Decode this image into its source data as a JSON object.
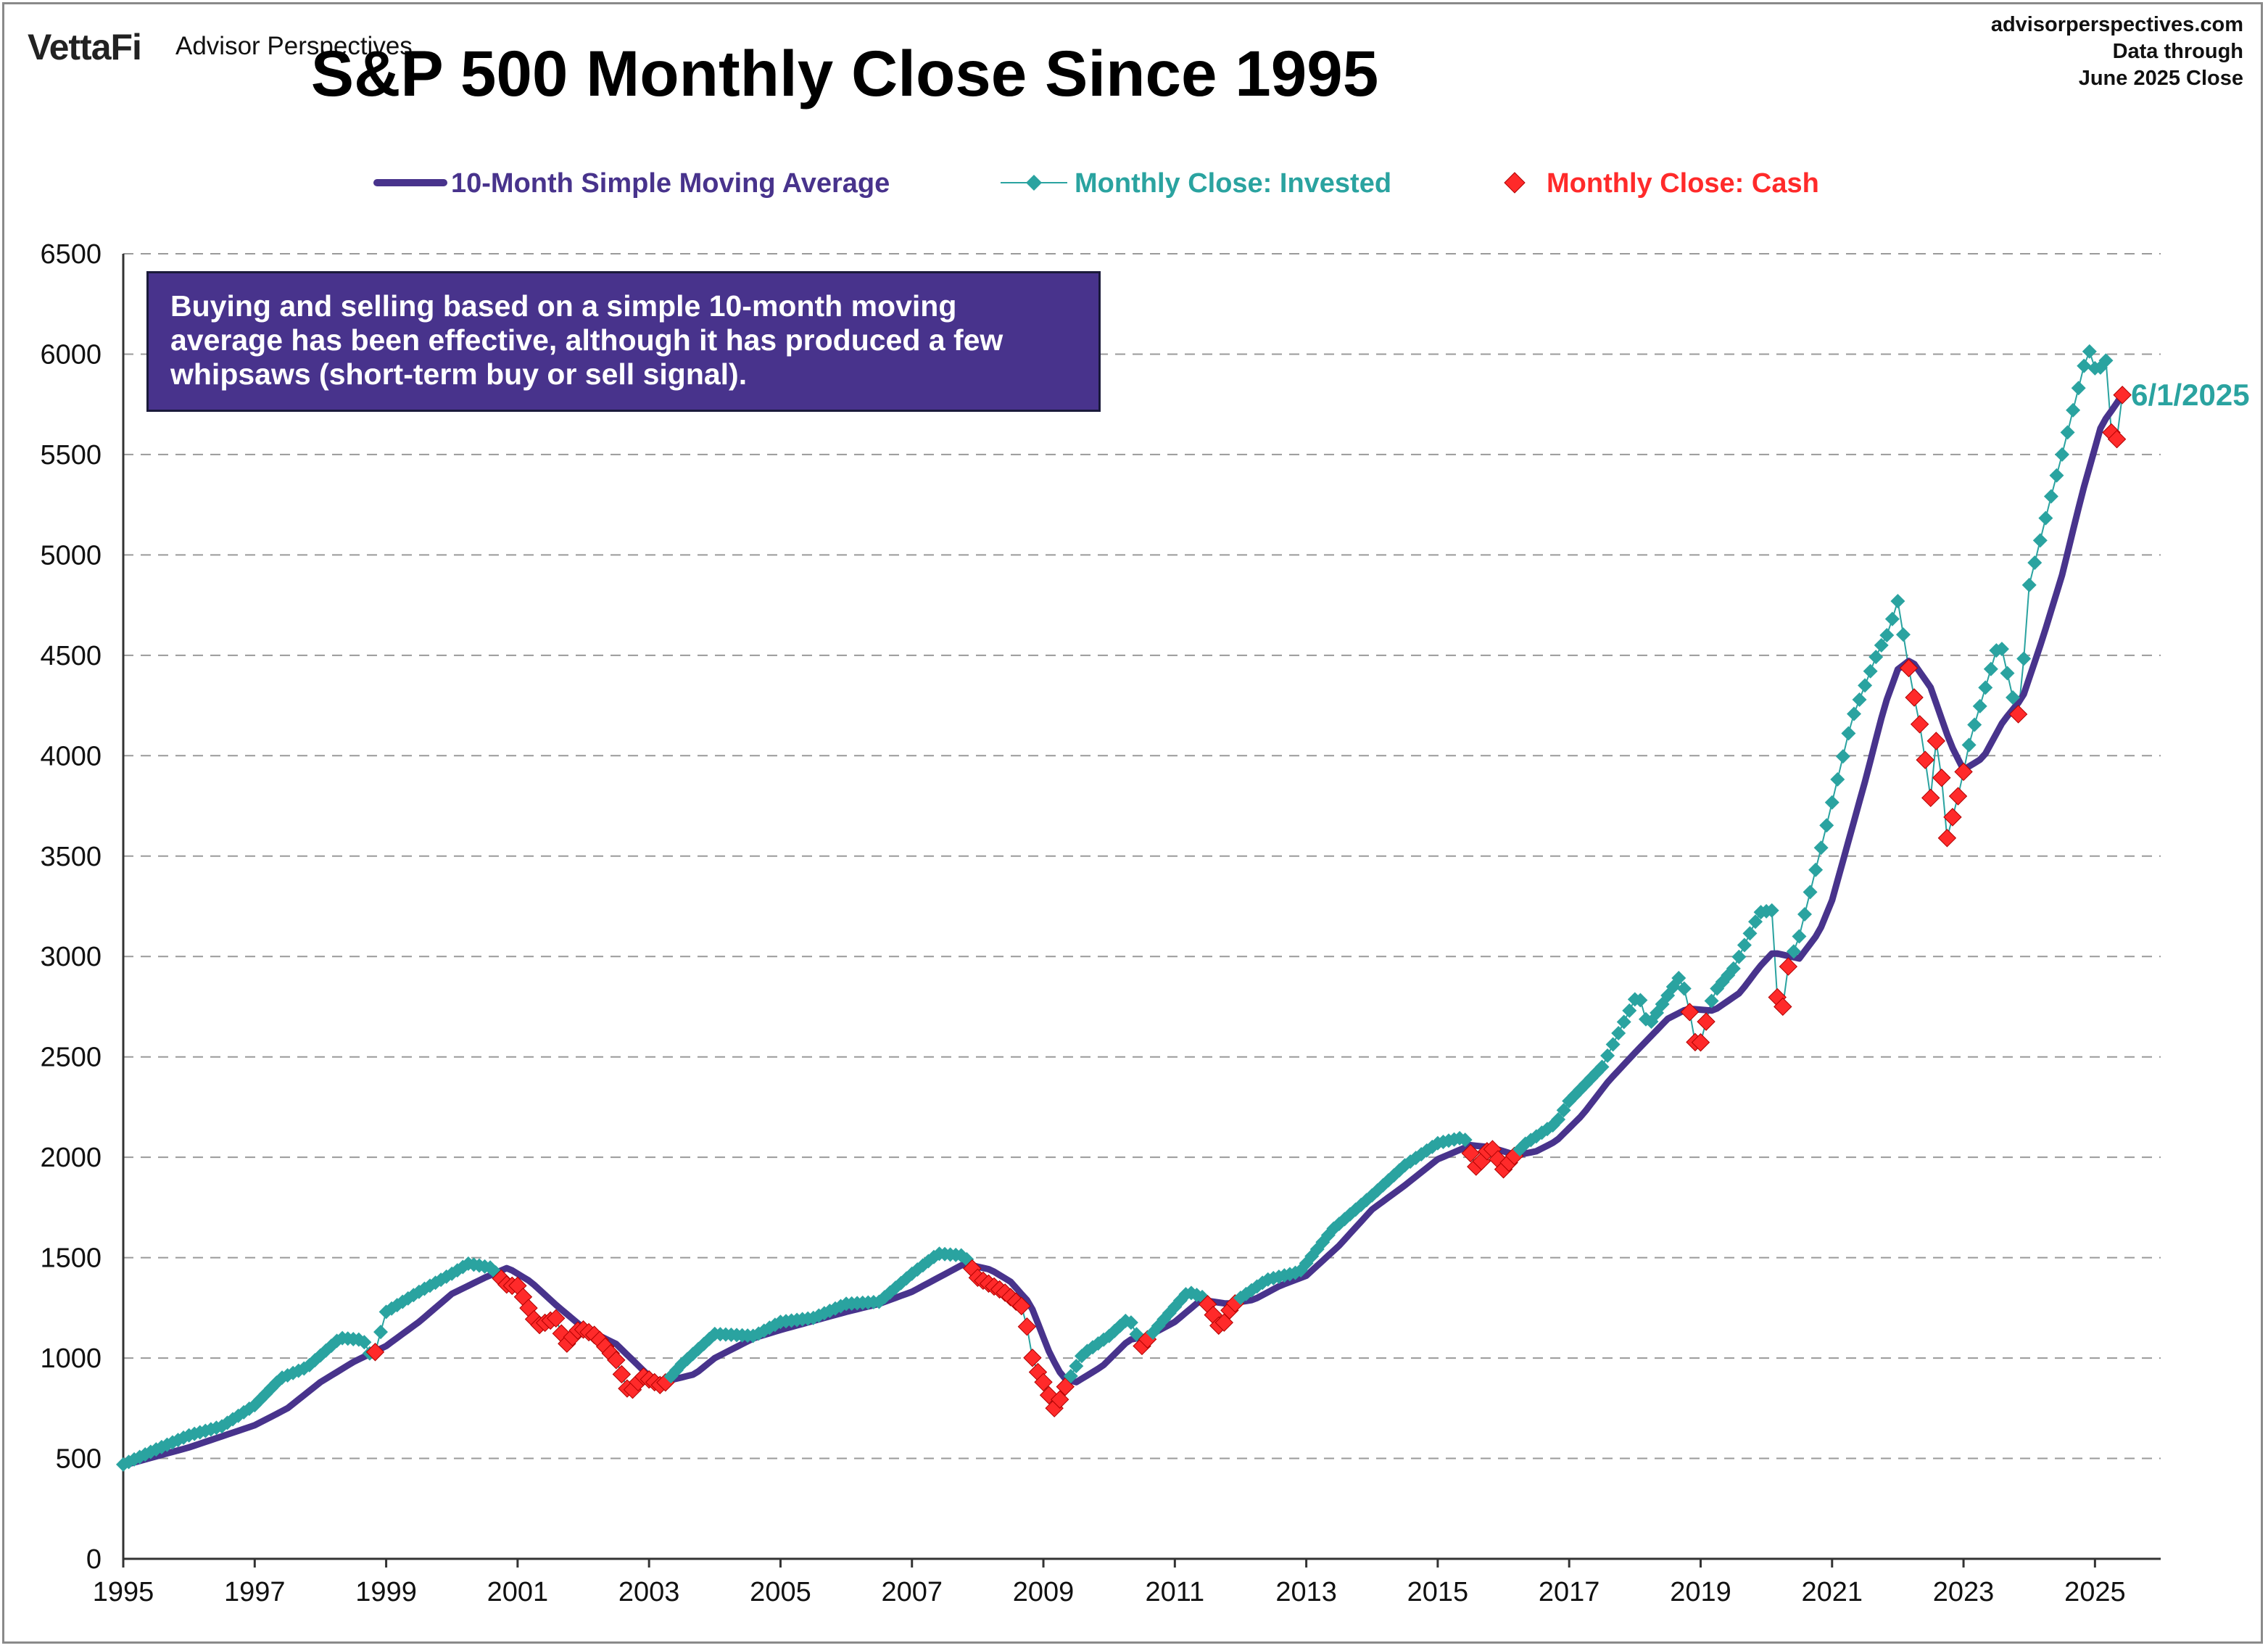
{
  "brand": {
    "logo": "VettaFi",
    "name": "Advisor Perspectives"
  },
  "source": {
    "site": "advisorperspectives.com",
    "line1": "Data through",
    "line2": "June 2025 Close"
  },
  "title": "S&P 500 Monthly Close Since 1995",
  "note": "Buying and selling based on a simple 10-month moving average has been effective, although it has produced a few whipsaws (short-term buy or sell signal).",
  "end_label": "6/1/2025",
  "colors": {
    "sma": "#48338c",
    "invested": "#2aa3a0",
    "cash": "#ff2a2a"
  },
  "legend": [
    {
      "label": "10-Month Simple Moving Average",
      "kind": "line",
      "color": "#48338c"
    },
    {
      "label": "Monthly Close: Invested",
      "kind": "diamond-line",
      "color": "#2aa3a0"
    },
    {
      "label": "Monthly Close: Cash",
      "kind": "diamond",
      "color": "#ff2a2a"
    }
  ],
  "chart_data": {
    "type": "line",
    "title": "S&P 500 Monthly Close Since 1995",
    "xlabel": "",
    "ylabel": "",
    "xlim": [
      1995,
      2026
    ],
    "ylim": [
      0,
      6500
    ],
    "x_ticks": [
      "1995",
      "1997",
      "1999",
      "2001",
      "2003",
      "2005",
      "2007",
      "2009",
      "2011",
      "2013",
      "2015",
      "2017",
      "2019",
      "2021",
      "2023",
      "2025"
    ],
    "y_ticks": [
      0,
      500,
      1000,
      1500,
      2000,
      2500,
      3000,
      3500,
      4000,
      4500,
      5000,
      5500,
      6000,
      6500
    ],
    "grid": "horizontal dashed",
    "legend_position": "top",
    "close_anchors": [
      [
        1995.0,
        470
      ],
      [
        1995.5,
        545
      ],
      [
        1996.0,
        615
      ],
      [
        1996.5,
        660
      ],
      [
        1997.0,
        765
      ],
      [
        1997.4,
        900
      ],
      [
        1997.8,
        955
      ],
      [
        1998.3,
        1100
      ],
      [
        1998.65,
        1090
      ],
      [
        1998.8,
        990
      ],
      [
        1999.0,
        1230
      ],
      [
        1999.5,
        1330
      ],
      [
        2000.0,
        1420
      ],
      [
        2000.25,
        1470
      ],
      [
        2000.6,
        1450
      ],
      [
        2000.85,
        1360
      ],
      [
        2001.0,
        1360
      ],
      [
        2001.3,
        1160
      ],
      [
        2001.6,
        1200
      ],
      [
        2001.72,
        1060
      ],
      [
        2001.95,
        1150
      ],
      [
        2002.2,
        1110
      ],
      [
        2002.5,
        990
      ],
      [
        2002.7,
        820
      ],
      [
        2002.9,
        910
      ],
      [
        2003.2,
        860
      ],
      [
        2003.5,
        970
      ],
      [
        2004.0,
        1120
      ],
      [
        2004.6,
        1110
      ],
      [
        2005.0,
        1180
      ],
      [
        2005.5,
        1200
      ],
      [
        2006.0,
        1270
      ],
      [
        2006.5,
        1280
      ],
      [
        2007.0,
        1420
      ],
      [
        2007.4,
        1520
      ],
      [
        2007.8,
        1510
      ],
      [
        2008.0,
        1400
      ],
      [
        2008.4,
        1330
      ],
      [
        2008.7,
        1250
      ],
      [
        2008.85,
        970
      ],
      [
        2009.0,
        880
      ],
      [
        2009.18,
        740
      ],
      [
        2009.35,
        870
      ],
      [
        2009.6,
        1020
      ],
      [
        2010.0,
        1110
      ],
      [
        2010.3,
        1200
      ],
      [
        2010.5,
        1060
      ],
      [
        2010.8,
        1180
      ],
      [
        2011.2,
        1330
      ],
      [
        2011.45,
        1300
      ],
      [
        2011.7,
        1140
      ],
      [
        2011.85,
        1250
      ],
      [
        2012.0,
        1300
      ],
      [
        2012.4,
        1390
      ],
      [
        2012.9,
        1430
      ],
      [
        2013.4,
        1640
      ],
      [
        2014.0,
        1810
      ],
      [
        2014.5,
        1960
      ],
      [
        2015.0,
        2070
      ],
      [
        2015.4,
        2100
      ],
      [
        2015.6,
        1940
      ],
      [
        2015.8,
        2060
      ],
      [
        2016.0,
        1940
      ],
      [
        2016.3,
        2060
      ],
      [
        2016.8,
        2170
      ],
      [
        2017.0,
        2280
      ],
      [
        2017.5,
        2450
      ],
      [
        2018.05,
        2820
      ],
      [
        2018.2,
        2650
      ],
      [
        2018.7,
        2910
      ],
      [
        2018.85,
        2700
      ],
      [
        2018.95,
        2510
      ],
      [
        2019.2,
        2820
      ],
      [
        2019.5,
        2940
      ],
      [
        2019.9,
        3220
      ],
      [
        2020.1,
        3230
      ],
      [
        2020.2,
        2580
      ],
      [
        2020.3,
        2920
      ],
      [
        2020.5,
        3100
      ],
      [
        2020.9,
        3630
      ],
      [
        2021.3,
        4180
      ],
      [
        2021.7,
        4520
      ],
      [
        2021.85,
        4610
      ],
      [
        2022.0,
        4770
      ],
      [
        2022.2,
        4370
      ],
      [
        2022.35,
        4130
      ],
      [
        2022.5,
        3790
      ],
      [
        2022.6,
        4130
      ],
      [
        2022.75,
        3590
      ],
      [
        2022.95,
        3840
      ],
      [
        2023.1,
        4080
      ],
      [
        2023.55,
        4580
      ],
      [
        2023.75,
        4290
      ],
      [
        2023.85,
        4190
      ],
      [
        2024.0,
        4850
      ],
      [
        2024.3,
        5250
      ],
      [
        2024.5,
        5500
      ],
      [
        2024.9,
        6030
      ],
      [
        2025.05,
        5880
      ],
      [
        2025.15,
        6040
      ],
      [
        2025.25,
        5610
      ],
      [
        2025.35,
        5570
      ],
      [
        2025.45,
        5910
      ],
      [
        2025.55,
        6200
      ]
    ],
    "sma_anchors": [
      [
        1995.0,
        465
      ],
      [
        1996.0,
        555
      ],
      [
        1997.0,
        665
      ],
      [
        1997.5,
        750
      ],
      [
        1998.0,
        880
      ],
      [
        1998.5,
        980
      ],
      [
        1999.0,
        1060
      ],
      [
        1999.5,
        1180
      ],
      [
        2000.0,
        1320
      ],
      [
        2000.5,
        1400
      ],
      [
        2000.85,
        1450
      ],
      [
        2001.2,
        1380
      ],
      [
        2001.6,
        1260
      ],
      [
        2002.0,
        1150
      ],
      [
        2002.5,
        1070
      ],
      [
        2003.0,
        910
      ],
      [
        2003.2,
        880
      ],
      [
        2003.7,
        920
      ],
      [
        2004.0,
        1000
      ],
      [
        2004.6,
        1100
      ],
      [
        2005.0,
        1140
      ],
      [
        2006.0,
        1230
      ],
      [
        2006.5,
        1270
      ],
      [
        2007.0,
        1330
      ],
      [
        2007.8,
        1470
      ],
      [
        2008.2,
        1440
      ],
      [
        2008.5,
        1380
      ],
      [
        2008.8,
        1270
      ],
      [
        2009.1,
        1020
      ],
      [
        2009.3,
        900
      ],
      [
        2009.5,
        880
      ],
      [
        2009.9,
        960
      ],
      [
        2010.3,
        1090
      ],
      [
        2010.6,
        1110
      ],
      [
        2011.0,
        1180
      ],
      [
        2011.4,
        1290
      ],
      [
        2011.8,
        1270
      ],
      [
        2012.2,
        1290
      ],
      [
        2012.6,
        1360
      ],
      [
        2013.0,
        1410
      ],
      [
        2013.5,
        1560
      ],
      [
        2014.0,
        1740
      ],
      [
        2014.5,
        1860
      ],
      [
        2015.0,
        1990
      ],
      [
        2015.5,
        2060
      ],
      [
        2015.8,
        2050
      ],
      [
        2016.2,
        2010
      ],
      [
        2016.5,
        2030
      ],
      [
        2016.8,
        2080
      ],
      [
        2017.2,
        2210
      ],
      [
        2017.6,
        2380
      ],
      [
        2018.0,
        2520
      ],
      [
        2018.5,
        2690
      ],
      [
        2018.8,
        2740
      ],
      [
        2019.2,
        2730
      ],
      [
        2019.6,
        2820
      ],
      [
        2019.9,
        2950
      ],
      [
        2020.1,
        3020
      ],
      [
        2020.5,
        2990
      ],
      [
        2020.8,
        3120
      ],
      [
        2021.0,
        3280
      ],
      [
        2021.5,
        3870
      ],
      [
        2021.8,
        4250
      ],
      [
        2022.0,
        4430
      ],
      [
        2022.2,
        4480
      ],
      [
        2022.5,
        4340
      ],
      [
        2022.8,
        4060
      ],
      [
        2023.0,
        3930
      ],
      [
        2023.3,
        3990
      ],
      [
        2023.6,
        4170
      ],
      [
        2023.9,
        4290
      ],
      [
        2024.2,
        4580
      ],
      [
        2024.5,
        4900
      ],
      [
        2024.8,
        5300
      ],
      [
        2025.1,
        5650
      ],
      [
        2025.3,
        5740
      ],
      [
        2025.55,
        5870
      ]
    ]
  }
}
